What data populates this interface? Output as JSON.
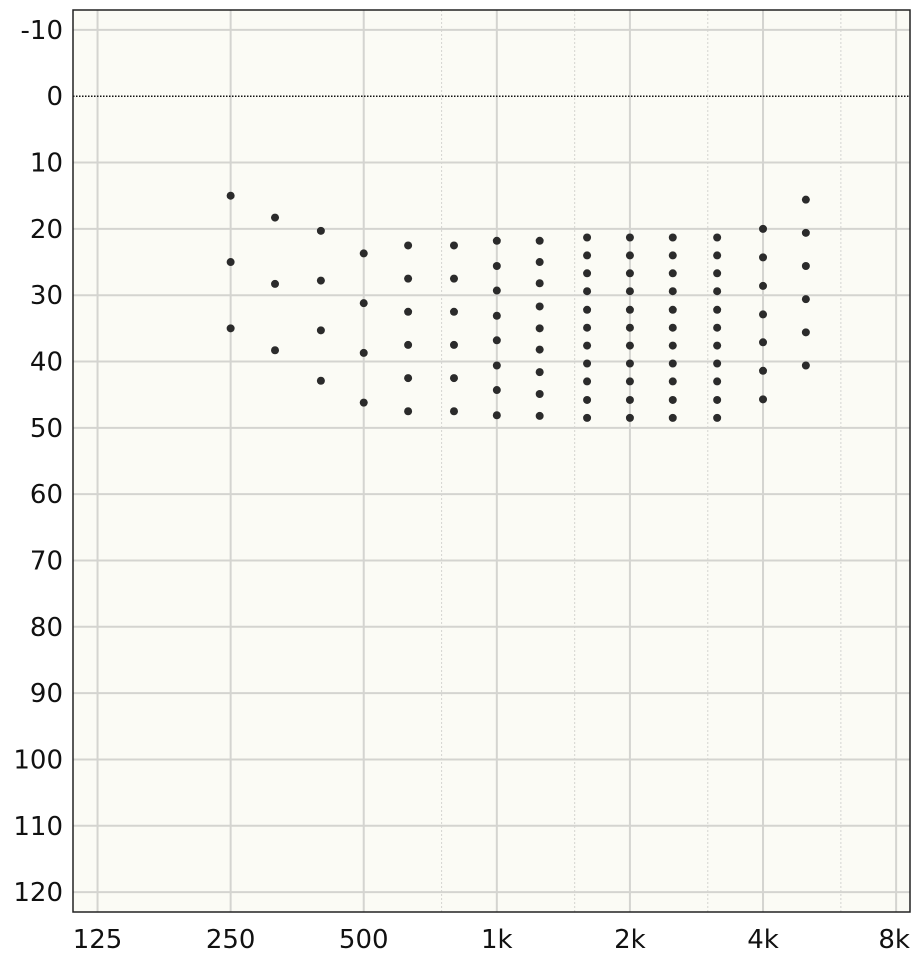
{
  "chart_data": {
    "type": "scatter",
    "title": "",
    "xlabel": "",
    "ylabel": "",
    "x_scale": "log2",
    "xlim": [
      110,
      8600
    ],
    "ylim": [
      -13,
      123
    ],
    "y_inverted": true,
    "grid": true,
    "x_major_ticks": [
      {
        "value": 125,
        "label": "125"
      },
      {
        "value": 250,
        "label": "250"
      },
      {
        "value": 500,
        "label": "500"
      },
      {
        "value": 1000,
        "label": "1k"
      },
      {
        "value": 2000,
        "label": "2k"
      },
      {
        "value": 4000,
        "label": "4k"
      },
      {
        "value": 8000,
        "label": "8k"
      }
    ],
    "x_minor_ticks": [
      750,
      1500,
      3000,
      6000
    ],
    "y_ticks": [
      -10,
      0,
      10,
      20,
      30,
      40,
      50,
      60,
      70,
      80,
      90,
      100,
      110,
      120
    ],
    "reference_line_y": 0,
    "colors": {
      "plot_background": "#fbfbf5",
      "grid": "#d4d4d0",
      "axis": "#222222",
      "point": "#2b2b2b",
      "reference_line": "#111111"
    },
    "columns": [
      {
        "x": 250,
        "y": [
          15,
          25,
          35
        ]
      },
      {
        "x": 315,
        "y": [
          18.3,
          28.3,
          38.3
        ]
      },
      {
        "x": 400,
        "y": [
          20.3,
          27.8,
          35.3,
          42.9
        ]
      },
      {
        "x": 500,
        "y": [
          23.7,
          31.2,
          38.7,
          46.2
        ]
      },
      {
        "x": 630,
        "y": [
          22.5,
          27.5,
          32.5,
          37.5,
          42.5,
          47.5
        ]
      },
      {
        "x": 800,
        "y": [
          22.5,
          27.5,
          32.5,
          37.5,
          42.5,
          47.5
        ]
      },
      {
        "x": 1000,
        "y": [
          21.8,
          25.6,
          29.3,
          33.1,
          36.8,
          40.6,
          44.3,
          48.1
        ]
      },
      {
        "x": 1250,
        "y": [
          21.8,
          25,
          28.2,
          31.7,
          35,
          38.2,
          41.6,
          44.9,
          48.2
        ]
      },
      {
        "x": 1600,
        "y": [
          21.3,
          24,
          26.7,
          29.4,
          32.2,
          34.9,
          37.6,
          40.3,
          43,
          45.8,
          48.5
        ]
      },
      {
        "x": 2000,
        "y": [
          21.3,
          24,
          26.7,
          29.4,
          32.2,
          34.9,
          37.6,
          40.3,
          43,
          45.8,
          48.5
        ]
      },
      {
        "x": 2500,
        "y": [
          21.3,
          24,
          26.7,
          29.4,
          32.2,
          34.9,
          37.6,
          40.3,
          43,
          45.8,
          48.5
        ]
      },
      {
        "x": 3150,
        "y": [
          21.3,
          24,
          26.7,
          29.4,
          32.2,
          34.9,
          37.6,
          40.3,
          43,
          45.8,
          48.5
        ]
      },
      {
        "x": 4000,
        "y": [
          20,
          24.3,
          28.6,
          32.9,
          37.1,
          41.4,
          45.7
        ]
      },
      {
        "x": 5000,
        "y": [
          15.6,
          20.6,
          25.6,
          30.6,
          35.6,
          40.6
        ]
      }
    ]
  }
}
